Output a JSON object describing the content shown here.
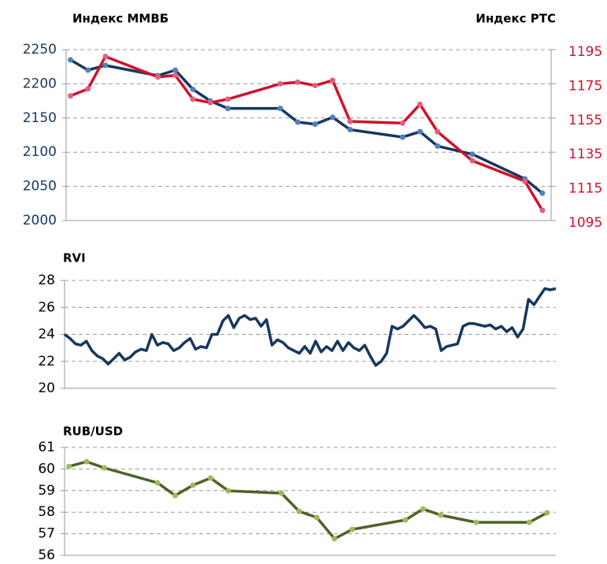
{
  "chart_data": [
    {
      "type": "line",
      "ylabel": "Индекс ММВБ",
      "y2label": "Индекс РТС",
      "x": [
        0,
        1,
        2,
        5,
        6,
        7,
        8,
        9,
        12,
        13,
        14,
        15,
        16,
        19,
        20,
        21,
        23,
        26,
        27
      ],
      "xlim": [
        -0.25,
        27.5
      ],
      "series": [
        {
          "color": "#17375e",
          "marker_color": "#4f81bd",
          "values": [
            2235,
            2220,
            2227,
            2212,
            2220,
            2192,
            2175,
            2164,
            2164,
            2144,
            2141,
            2151,
            2133,
            2122,
            2130,
            2109,
            2097,
            2061,
            2040
          ]
        },
        {
          "color": "#d0122c",
          "marker_color": "#e0607a",
          "axis": "y2",
          "values": [
            1168,
            1172,
            1191,
            1179,
            1180,
            1166,
            1164,
            1166,
            1175,
            1176,
            1174,
            1177,
            1153,
            1152,
            1163,
            1147,
            1130,
            1118,
            1101
          ]
        }
      ],
      "ylim": [
        2000,
        2250
      ],
      "yticks": [
        2000,
        2050,
        2100,
        2150,
        2200,
        2250
      ],
      "y2lim": [
        1095,
        1195
      ],
      "y2ticks": [
        1095,
        1115,
        1135,
        1155,
        1175,
        1195
      ],
      "ytick_color": "#17375e",
      "y2tick_color": "#d0122c",
      "markers": true,
      "grid": true
    },
    {
      "type": "line",
      "title": "RVI",
      "series": [
        {
          "color": "#17375e",
          "values": [
            24,
            23.7,
            23.3,
            23.2,
            23.5,
            22.8,
            22.4,
            22.2,
            21.8,
            22.2,
            22.6,
            22.1,
            22.3,
            22.7,
            22.9,
            22.8,
            24,
            23.2,
            23.4,
            23.3,
            22.8,
            23.0,
            23.4,
            23.7,
            22.9,
            23.1,
            23.0,
            24.0,
            24.0,
            25.0,
            25.4,
            24.5,
            25.2,
            25.4,
            25.1,
            25.2,
            24.6,
            25.1,
            23.2,
            23.6,
            23.4,
            23.0,
            22.8,
            22.6,
            23.1,
            22.6,
            23.5,
            22.7,
            23.1,
            22.8,
            23.5,
            22.8,
            23.4,
            23.0,
            22.8,
            23.2,
            22.4,
            21.7,
            22.0,
            22.6,
            24.6,
            24.4,
            24.6,
            25.0,
            25.4,
            25.0,
            24.5,
            24.6,
            24.4,
            22.8,
            23.1,
            23.2,
            23.3,
            24.6,
            24.8,
            24.8,
            24.7,
            24.6,
            24.7,
            24.4,
            24.6,
            24.2,
            24.5,
            23.8,
            24.4,
            26.6,
            26.2,
            26.8,
            27.4,
            27.3,
            27.4
          ]
        }
      ],
      "ylim": [
        20,
        28
      ],
      "yticks": [
        20,
        22,
        24,
        26,
        28
      ],
      "ytick_color": "#000000",
      "markers": false,
      "grid": true
    },
    {
      "type": "line",
      "title": "RUB/USD",
      "x": [
        0,
        1,
        2,
        5,
        6,
        7,
        8,
        9,
        12,
        13,
        14,
        15,
        16,
        19,
        20,
        21,
        23,
        26,
        27
      ],
      "xlim": [
        -0.25,
        27.5
      ],
      "series": [
        {
          "color": "#4f6228",
          "marker_color": "#9bbb59",
          "values": [
            60.12,
            60.34,
            60.05,
            59.36,
            58.77,
            59.25,
            59.58,
            58.99,
            58.88,
            58.04,
            57.75,
            56.77,
            57.2,
            57.64,
            58.15,
            57.86,
            57.53,
            57.53,
            57.97
          ]
        }
      ],
      "ylim": [
        56,
        61
      ],
      "yticks": [
        56,
        57,
        58,
        59,
        60,
        61
      ],
      "ytick_color": "#000000",
      "markers": true,
      "grid": true
    }
  ]
}
